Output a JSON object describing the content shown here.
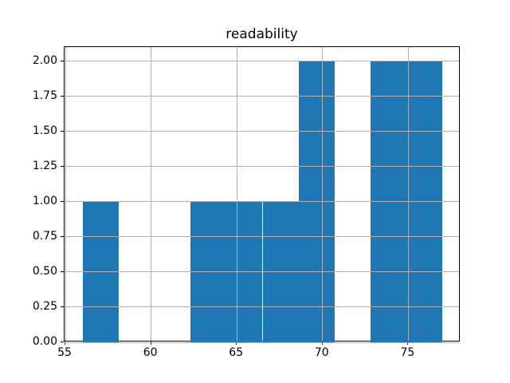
{
  "chart_data": {
    "type": "bar",
    "chart_kind": "histogram",
    "title": "readability",
    "xlabel": "",
    "ylabel": "",
    "bin_edges": [
      56.0,
      58.1,
      60.2,
      62.3,
      64.4,
      66.5,
      68.6,
      70.7,
      72.8,
      74.9,
      77.0
    ],
    "counts": [
      1,
      0,
      0,
      1,
      1,
      1,
      2,
      0,
      2,
      2
    ],
    "xlim": [
      54.95,
      78.05
    ],
    "ylim": [
      0,
      2.1
    ],
    "xticks": [
      55,
      60,
      65,
      70,
      75
    ],
    "xtick_labels": [
      "55",
      "60",
      "65",
      "70",
      "75"
    ],
    "yticks": [
      0.0,
      0.25,
      0.5,
      0.75,
      1.0,
      1.25,
      1.5,
      1.75,
      2.0
    ],
    "ytick_labels": [
      "0.00",
      "0.25",
      "0.50",
      "0.75",
      "1.00",
      "1.25",
      "1.50",
      "1.75",
      "2.00"
    ],
    "grid": true,
    "grid_over_bars": true,
    "legend": false,
    "bar_color": "#1f77b4",
    "grid_color": "#b0b0b0",
    "spine_color": "#000000",
    "background_color": "#ffffff"
  }
}
